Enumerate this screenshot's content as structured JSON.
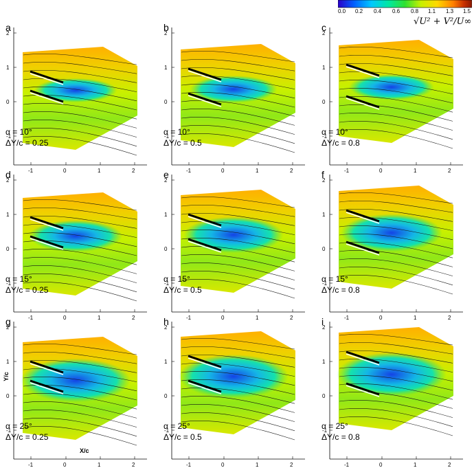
{
  "colorbar": {
    "ticks": [
      "0.0",
      "0.2",
      "0.4",
      "0.6",
      "0.8",
      "1.1",
      "1.3",
      "1.5"
    ],
    "title": "√U² + V²/U∞",
    "colors": [
      "#2a00c8",
      "#0060ff",
      "#00c8ff",
      "#00e8a0",
      "#30e030",
      "#c8f000",
      "#ffd800",
      "#ff8000",
      "#c83000",
      "#8b1a00"
    ]
  },
  "axes": {
    "xlabel": "X/c",
    "ylabel": "Y/c",
    "yticks": [
      "2",
      "1",
      "0",
      "-1"
    ],
    "xticks": [
      "-1",
      "0",
      "1",
      "2"
    ]
  },
  "panels": [
    {
      "letter": "a",
      "alpha": "α = 10°",
      "dy": "ΔY/c = 0.25"
    },
    {
      "letter": "b",
      "alpha": "α = 10°",
      "dy": "ΔY/c = 0.5"
    },
    {
      "letter": "c",
      "alpha": "α = 10°",
      "dy": "ΔY/c = 0.8"
    },
    {
      "letter": "d",
      "alpha": "α = 15°",
      "dy": "ΔY/c = 0.25"
    },
    {
      "letter": "e",
      "alpha": "α = 15°",
      "dy": "ΔY/c = 0.5"
    },
    {
      "letter": "f",
      "alpha": "α = 15°",
      "dy": "ΔY/c = 0.8"
    },
    {
      "letter": "g",
      "alpha": "α = 25°",
      "dy": "ΔY/c = 0.25"
    },
    {
      "letter": "h",
      "alpha": "α = 25°",
      "dy": "ΔY/c = 0.5"
    },
    {
      "letter": "i",
      "alpha": "α = 25°",
      "dy": "ΔY/c = 0.8"
    }
  ]
}
